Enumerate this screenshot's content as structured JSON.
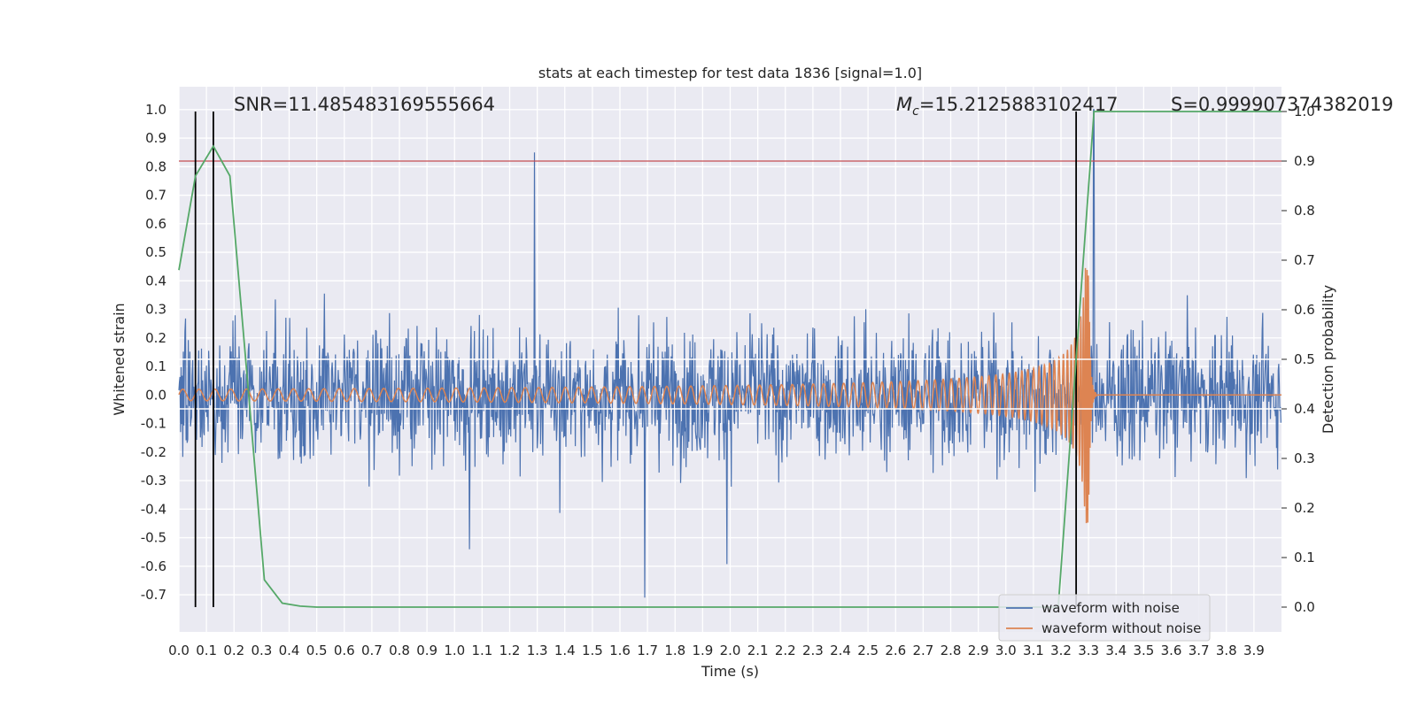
{
  "chart_data": {
    "type": "line",
    "title": "stats at each timestep for test data 1836 [signal=1.0]",
    "xlabel": "Time (s)",
    "ylabel": "Whitened strain",
    "y2label": "Detection probability",
    "xlim": [
      0.0,
      4.0
    ],
    "ylim": [
      -0.83,
      1.08
    ],
    "y2lim": [
      -0.05,
      1.05
    ],
    "xticks": [
      "0.0",
      "0.1",
      "0.2",
      "0.3",
      "0.4",
      "0.5",
      "0.6",
      "0.7",
      "0.8",
      "0.9",
      "1.0",
      "1.1",
      "1.2",
      "1.3",
      "1.4",
      "1.5",
      "1.6",
      "1.7",
      "1.8",
      "1.9",
      "2.0",
      "2.1",
      "2.2",
      "2.3",
      "2.4",
      "2.5",
      "2.6",
      "2.7",
      "2.8",
      "2.9",
      "3.0",
      "3.1",
      "3.2",
      "3.3",
      "3.4",
      "3.5",
      "3.6",
      "3.7",
      "3.8",
      "3.9"
    ],
    "yticks": [
      "1.0",
      "0.9",
      "0.8",
      "0.7",
      "0.6",
      "0.5",
      "0.4",
      "0.3",
      "0.2",
      "0.1",
      "0.0",
      "-0.1",
      "-0.2",
      "-0.3",
      "-0.4",
      "-0.5",
      "-0.6",
      "-0.7"
    ],
    "y2ticks": [
      "1.0",
      "0.9",
      "0.8",
      "0.7",
      "0.6",
      "0.5",
      "0.4",
      "0.3",
      "0.2",
      "0.1",
      "0.0"
    ],
    "grid": true,
    "legend_position": "bottom-right",
    "annotations": {
      "snr": "SNR=11.485483169555664",
      "mc_symbol": "M",
      "mc_subscript": "c",
      "mc_value": "=15.2125883102417",
      "s_value": "S=0.999907374382019"
    },
    "series": [
      {
        "name": "waveform with noise",
        "color": "#4c72b0",
        "axis": "left",
        "description_values": "noise amplitude about ±0.3 to ±0.5, spikes up to 0.85 at 1.29 s and -0.71 at 1.69 s"
      },
      {
        "name": "waveform without noise",
        "color": "#dd8452",
        "axis": "left",
        "chirp_start_amp": 0.02,
        "chirp_peak_amp": 0.45,
        "chirp_merger_time": 3.3,
        "chirp_end_value": 0.0
      },
      {
        "name": "",
        "color": "#55a868",
        "axis": "right",
        "x": [
          0.0,
          0.06,
          0.125,
          0.185,
          0.25,
          0.31,
          0.375,
          0.44,
          0.5,
          3.19,
          3.255,
          3.32,
          3.9,
          4.0
        ],
        "y": [
          0.68,
          0.87,
          0.93,
          0.87,
          0.45,
          0.055,
          0.008,
          0.002,
          0.0,
          0.0,
          0.5,
          1.0,
          1.0,
          1.0
        ]
      }
    ],
    "hlines": [
      {
        "axis": "right",
        "value": 0.9,
        "color": "#c44e52"
      },
      {
        "axis": "right",
        "value": 0.5,
        "color": "#ffffff"
      },
      {
        "axis": "right",
        "value": 0.4,
        "color": "#ffffff"
      }
    ],
    "vlines": [
      {
        "x": 0.06,
        "ymin": 0.0,
        "ymax": 1.0,
        "color": "#000000"
      },
      {
        "x": 0.125,
        "ymin": 0.0,
        "ymax": 1.0,
        "color": "#000000"
      },
      {
        "x": 3.255,
        "ymin": 0.0,
        "ymax": 1.0,
        "color": "#000000"
      }
    ]
  }
}
